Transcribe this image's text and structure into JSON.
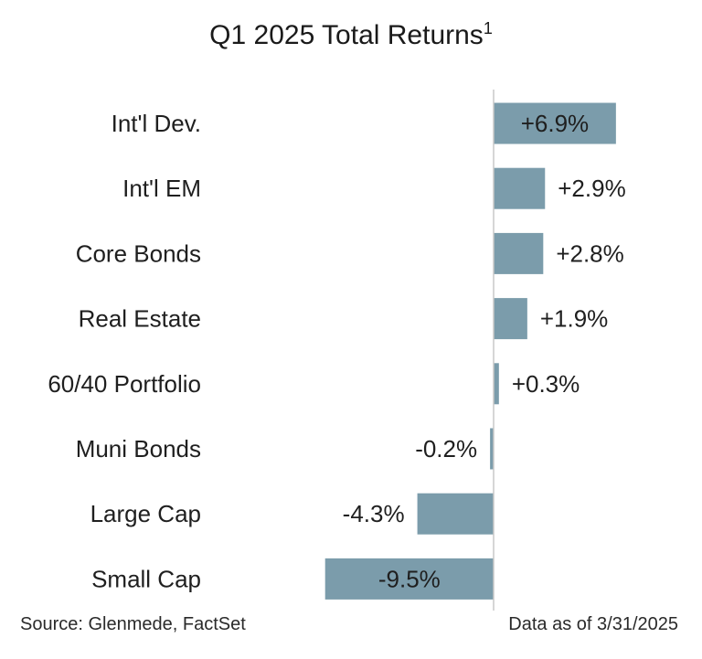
{
  "chart_data": {
    "type": "bar",
    "orientation": "horizontal",
    "title": "Q1 2025 Total Returns",
    "title_superscript": "1",
    "categories": [
      "Int'l Dev.",
      "Int'l EM",
      "Core Bonds",
      "Real Estate",
      "60/40 Portfolio",
      "Muni Bonds",
      "Large Cap",
      "Small Cap"
    ],
    "values": [
      6.9,
      2.9,
      2.8,
      1.9,
      0.3,
      -0.2,
      -4.3,
      -9.5
    ],
    "value_labels": [
      "+6.9%",
      "+2.9%",
      "+2.8%",
      "+1.9%",
      "+0.3%",
      "-0.2%",
      "-4.3%",
      "-9.5%"
    ],
    "xlim": [
      -9.5,
      10.5
    ],
    "xlabel": "",
    "ylabel": "",
    "grid": false,
    "legend": "none",
    "bar_color": "#7b9cab"
  },
  "footer": {
    "source": "Source: Glenmede, FactSet",
    "date_note": "Data as of 3/31/2025"
  }
}
